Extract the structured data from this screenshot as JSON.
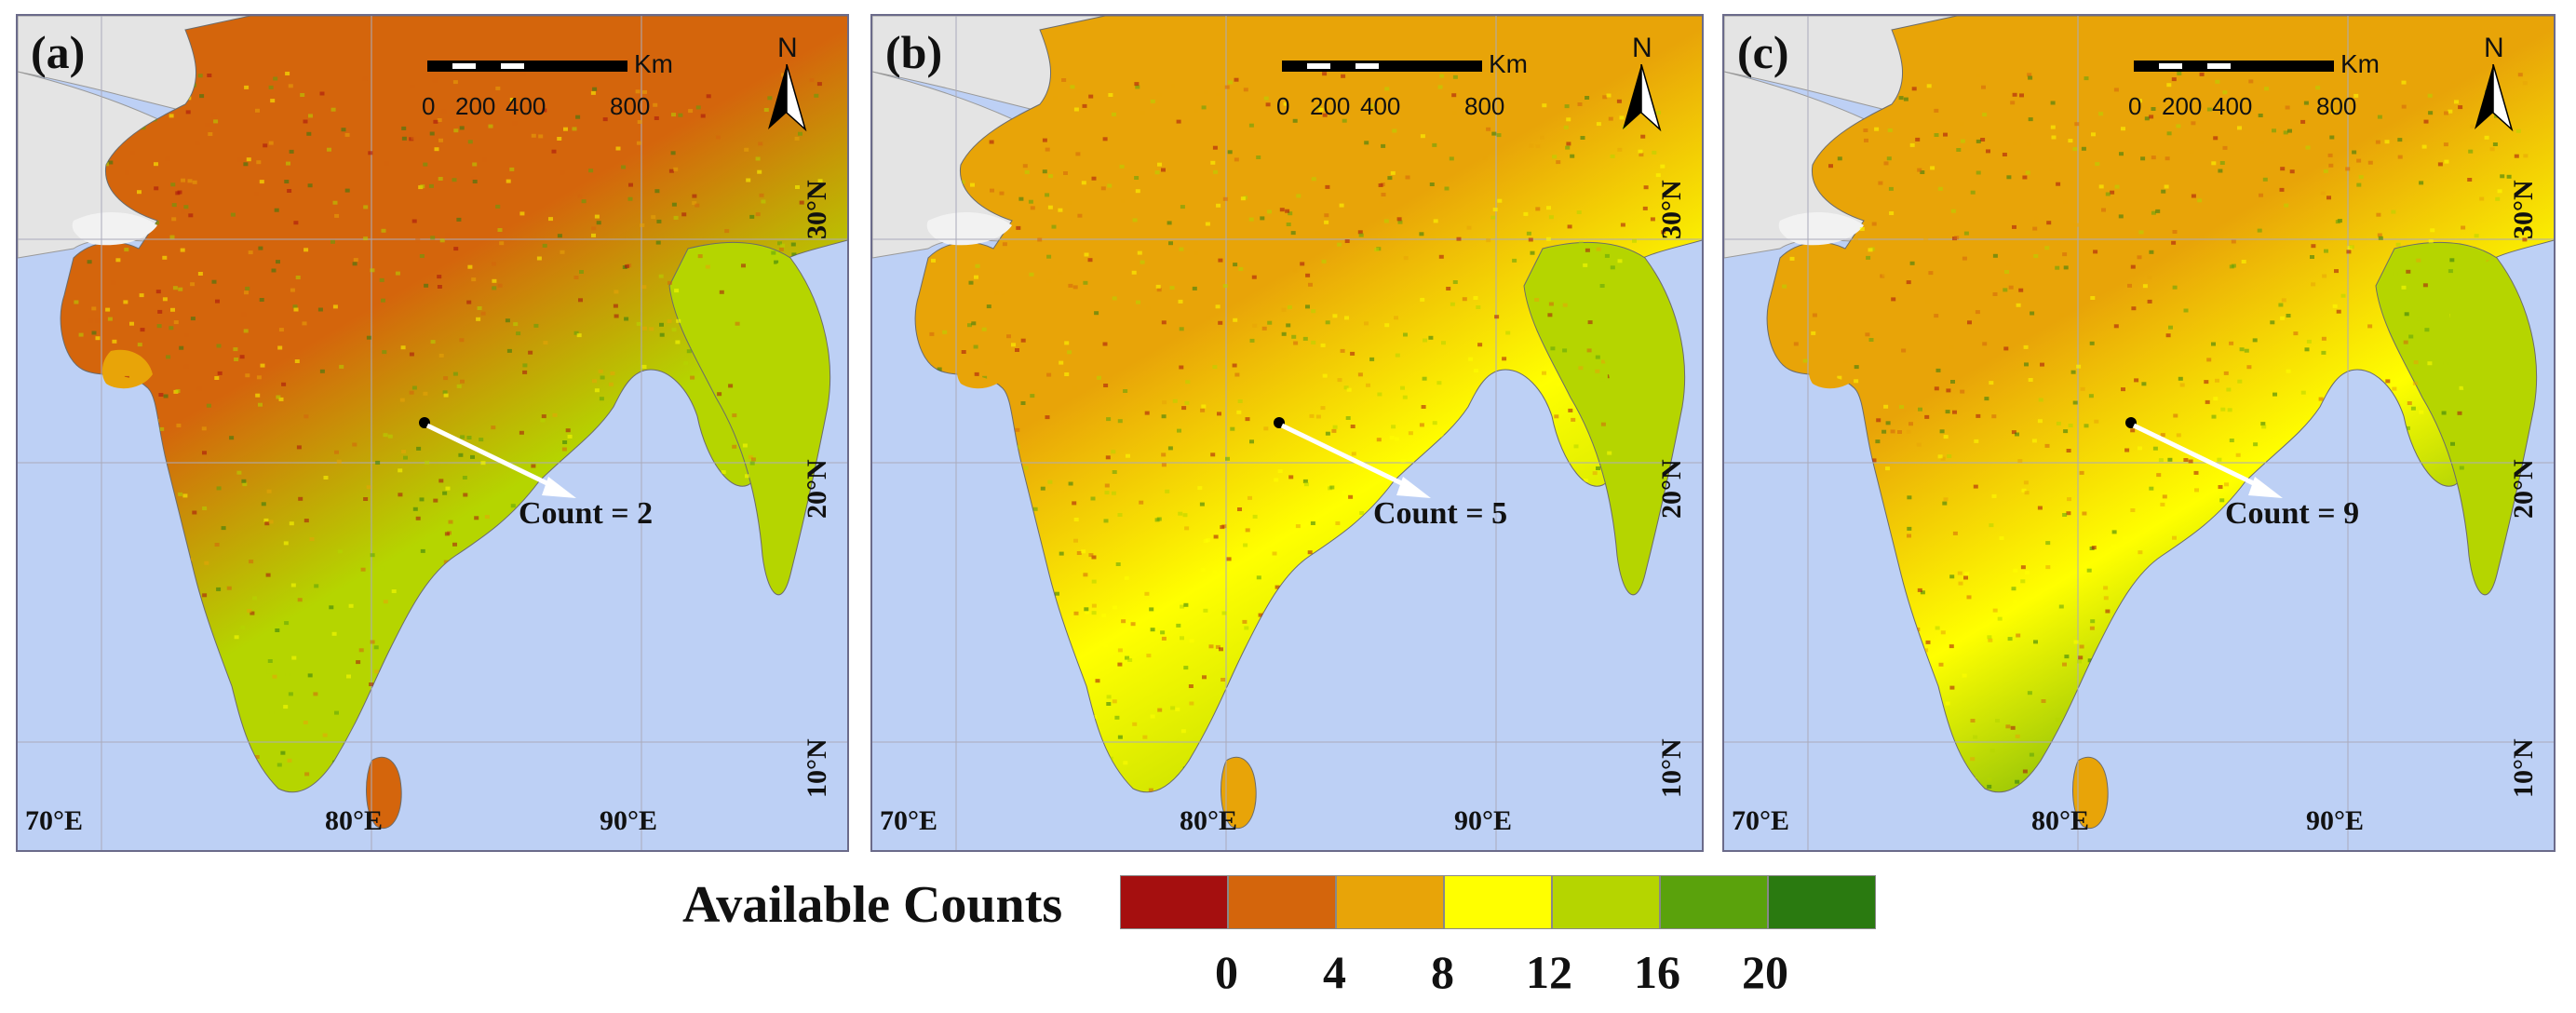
{
  "panels": [
    {
      "label": "(a)",
      "count_text": "Count = 2"
    },
    {
      "label": "(b)",
      "count_text": "Count = 5"
    },
    {
      "label": "(c)",
      "count_text": "Count = 9"
    }
  ],
  "scale": {
    "unit": "Km",
    "ticks": [
      "0",
      "200",
      "400",
      "800"
    ]
  },
  "north_label": "N",
  "lon_labels": [
    "70°E",
    "80°E",
    "90°E"
  ],
  "lat_labels": [
    "30°N",
    "20°N",
    "10°N"
  ],
  "legend": {
    "title": "Available Counts",
    "ticks": [
      "0",
      "4",
      "8",
      "12",
      "16",
      "20"
    ],
    "colors": [
      "#a50f0f",
      "#d4650c",
      "#e8a408",
      "#ffff00",
      "#b5d500",
      "#5aa20c",
      "#2a7a10"
    ]
  },
  "colors": {
    "ocean": "#bdd0f5",
    "land_outside": "#e4e4e4",
    "border": "#6b6b8a"
  }
}
